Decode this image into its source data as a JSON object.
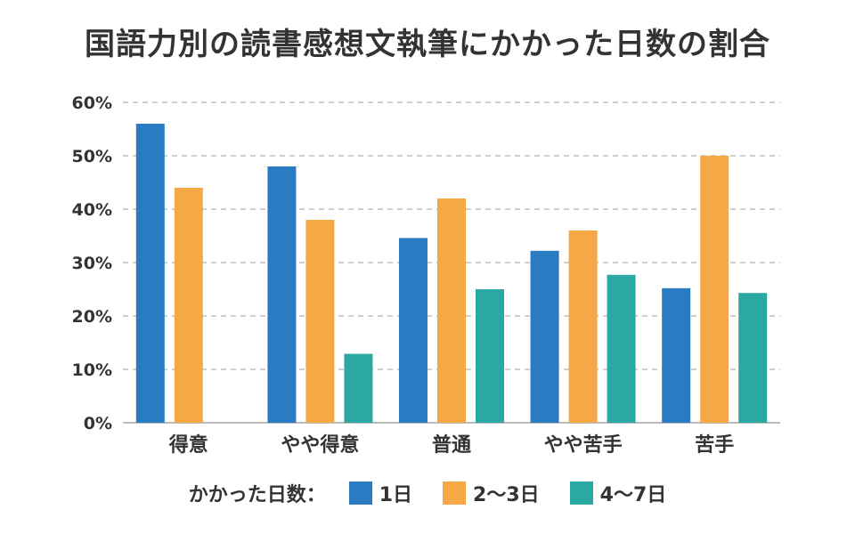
{
  "chart_data": {
    "type": "bar",
    "title": "国語力別の読書感想文執筆にかかった日数の割合",
    "categories": [
      "得意",
      "やや得意",
      "普通",
      "やや苦手",
      "苦手"
    ],
    "series": [
      {
        "name": "1日",
        "color": "#2B7BC2",
        "values": [
          56,
          48,
          34.6,
          32.2,
          25.2
        ]
      },
      {
        "name": "2〜3日",
        "color": "#F7A846",
        "values": [
          44,
          38,
          42,
          36,
          50
        ]
      },
      {
        "name": "4〜7日",
        "color": "#2BA8A2",
        "values": [
          null,
          12.9,
          25,
          27.7,
          24.3
        ]
      }
    ],
    "ylim": [
      0,
      60
    ],
    "yticks": [
      0,
      10,
      20,
      30,
      40,
      50,
      60
    ],
    "ytick_suffix": "%",
    "ytick_labels": [
      "0%",
      "10%",
      "20%",
      "30%",
      "40%",
      "50%",
      "60%"
    ],
    "grid": true,
    "legend_position": "bottom",
    "xlabel": "",
    "ylabel": ""
  },
  "legend": {
    "label": "かかった日数："
  }
}
